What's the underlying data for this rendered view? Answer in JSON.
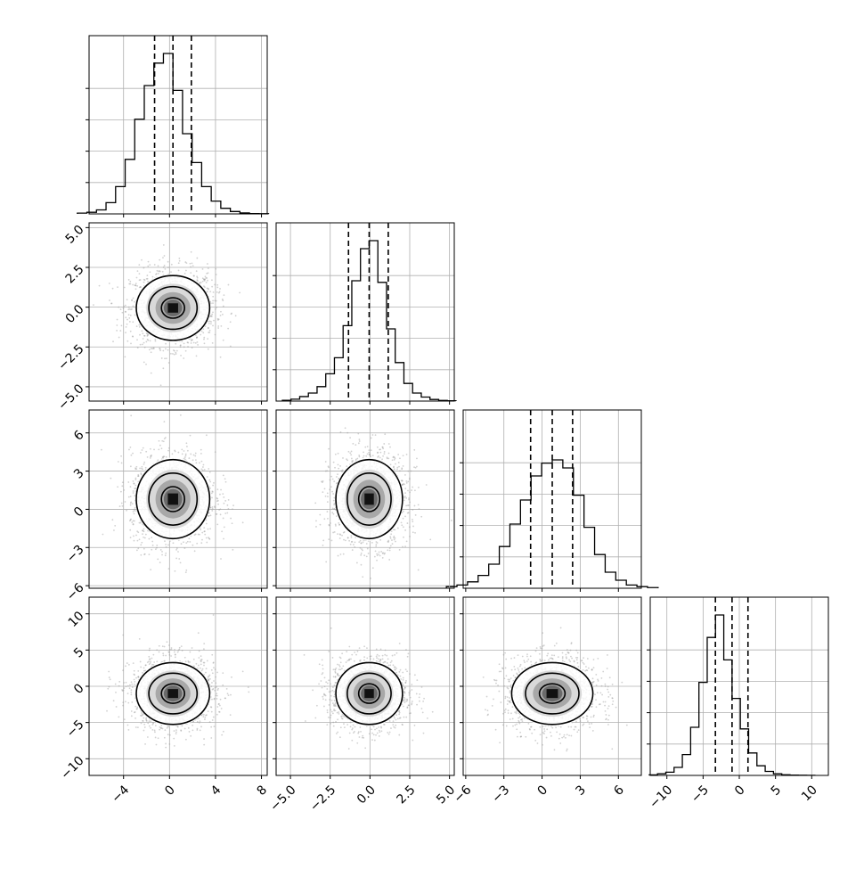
{
  "chart_data": {
    "type": "corner",
    "grid": true,
    "n_params": 4,
    "quantiles": [
      0.16,
      0.5,
      0.84
    ],
    "params": [
      {
        "range": [
          -7,
          8.5
        ],
        "ticks": [
          -4,
          0,
          4,
          8
        ],
        "tick_labels": [
          "−4",
          "0",
          "4",
          "8"
        ],
        "mean": 0.3,
        "sigma": 1.6
      },
      {
        "range": [
          -5.9,
          5.3
        ],
        "ticks": [
          -5,
          -2.5,
          0,
          2.5,
          5
        ],
        "tick_labels": [
          "−5.0",
          "−2.5",
          "0.0",
          "2.5",
          "5.0"
        ],
        "mean": -0.05,
        "sigma": 1.05
      },
      {
        "range": [
          -6.2,
          7.8
        ],
        "ticks": [
          -6,
          -3,
          0,
          3,
          6
        ],
        "tick_labels": [
          "−6",
          "−3",
          "0",
          "3",
          "6"
        ],
        "mean": 0.8,
        "sigma": 1.6
      },
      {
        "range": [
          -12.3,
          12.3
        ],
        "ticks": [
          -10,
          -5,
          0,
          5,
          10
        ],
        "tick_labels": [
          "−10",
          "−5",
          "0",
          "5",
          "10"
        ],
        "mean": -1.0,
        "sigma": 2.2
      }
    ],
    "quantile_values": [
      [
        -1.3,
        0.3,
        1.9
      ],
      [
        -1.35,
        -0.05,
        1.15
      ],
      [
        -0.9,
        0.8,
        2.4
      ],
      [
        -3.3,
        -1.0,
        1.2
      ]
    ],
    "hist_bins": 20,
    "hist_heights": [
      [
        0.005,
        0.01,
        0.025,
        0.07,
        0.17,
        0.34,
        0.59,
        0.8,
        0.94,
        1.0,
        0.77,
        0.5,
        0.32,
        0.17,
        0.08,
        0.035,
        0.015,
        0.006,
        0.002,
        0.001
      ],
      [
        0.005,
        0.012,
        0.028,
        0.05,
        0.09,
        0.17,
        0.27,
        0.47,
        0.75,
        0.95,
        1.0,
        0.74,
        0.45,
        0.24,
        0.11,
        0.05,
        0.025,
        0.01,
        0.004,
        0.002
      ],
      [
        0.01,
        0.02,
        0.04,
        0.08,
        0.15,
        0.26,
        0.4,
        0.55,
        0.7,
        0.78,
        0.8,
        0.75,
        0.58,
        0.38,
        0.21,
        0.1,
        0.05,
        0.02,
        0.01,
        0.004
      ],
      [
        0.003,
        0.01,
        0.02,
        0.05,
        0.13,
        0.3,
        0.58,
        0.86,
        1.0,
        0.72,
        0.48,
        0.29,
        0.14,
        0.06,
        0.025,
        0.01,
        0.004,
        0.002,
        0.001,
        0.0005
      ]
    ]
  }
}
